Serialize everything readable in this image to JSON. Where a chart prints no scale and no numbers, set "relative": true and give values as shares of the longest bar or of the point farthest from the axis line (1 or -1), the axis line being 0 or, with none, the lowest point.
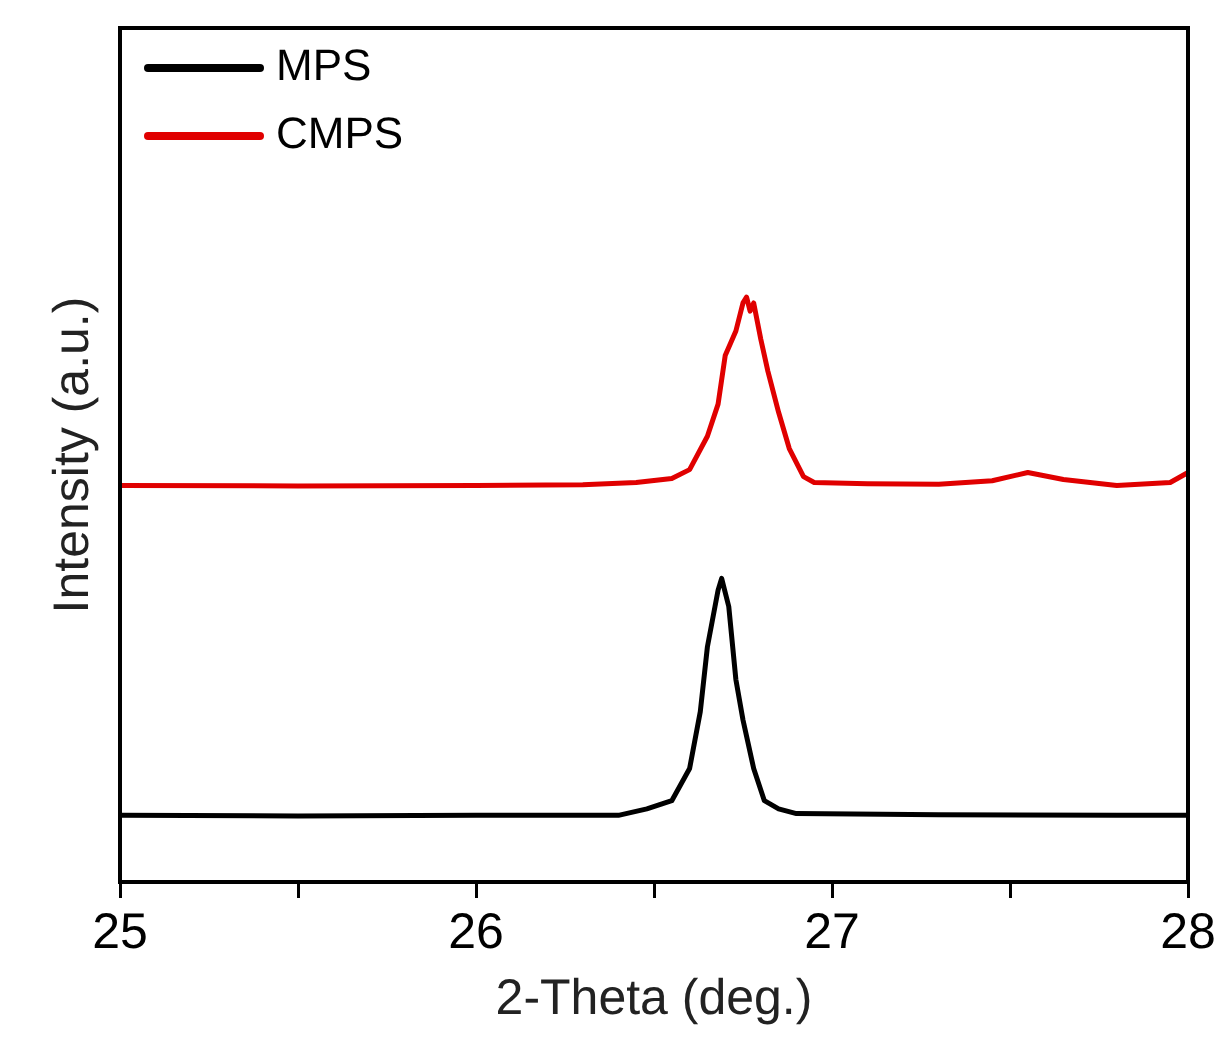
{
  "chart_data": {
    "type": "line",
    "xlabel": "2-Theta (deg.)",
    "ylabel": "Intensity (a.u.)",
    "relative": true,
    "xlim": [
      25,
      28
    ],
    "xticks": [
      25,
      {
        "value": 25.5,
        "label": null
      },
      26,
      {
        "value": 26.5,
        "label": null
      },
      27,
      {
        "value": 27.5,
        "label": null
      },
      28
    ],
    "legend": "top left",
    "marker": "none",
    "grid": false,
    "series": [
      {
        "name": "MPS",
        "color": "#000000",
        "x": [
          25,
          25.5,
          26,
          26.4,
          26.48,
          26.55,
          26.6,
          26.63,
          26.65,
          26.68,
          26.69,
          26.71,
          26.73,
          26.75,
          26.78,
          26.81,
          26.85,
          26.9,
          27.3,
          27.8,
          28
        ],
        "values": [
          0.114,
          0.113,
          0.114,
          0.114,
          0.125,
          0.139,
          0.194,
          0.291,
          0.402,
          0.499,
          0.519,
          0.471,
          0.346,
          0.277,
          0.194,
          0.139,
          0.125,
          0.117,
          0.115,
          0.114,
          0.114
        ]
      },
      {
        "name": "CMPS",
        "color": "#e00000",
        "x": [
          25,
          25.5,
          26,
          26.3,
          26.45,
          26.55,
          26.6,
          26.65,
          26.68,
          26.7,
          26.73,
          26.75,
          26.76,
          26.77,
          26.78,
          26.8,
          26.82,
          26.85,
          26.88,
          26.92,
          26.95,
          27.1,
          27.3,
          27.45,
          27.55,
          27.65,
          27.8,
          27.95,
          28
        ],
        "values": [
          0.678,
          0.677,
          0.678,
          0.679,
          0.683,
          0.69,
          0.705,
          0.762,
          0.817,
          0.9,
          0.942,
          0.99,
          1,
          0.976,
          0.99,
          0.928,
          0.873,
          0.803,
          0.741,
          0.693,
          0.683,
          0.681,
          0.68,
          0.686,
          0.7,
          0.688,
          0.678,
          0.683,
          0.7
        ]
      }
    ]
  }
}
